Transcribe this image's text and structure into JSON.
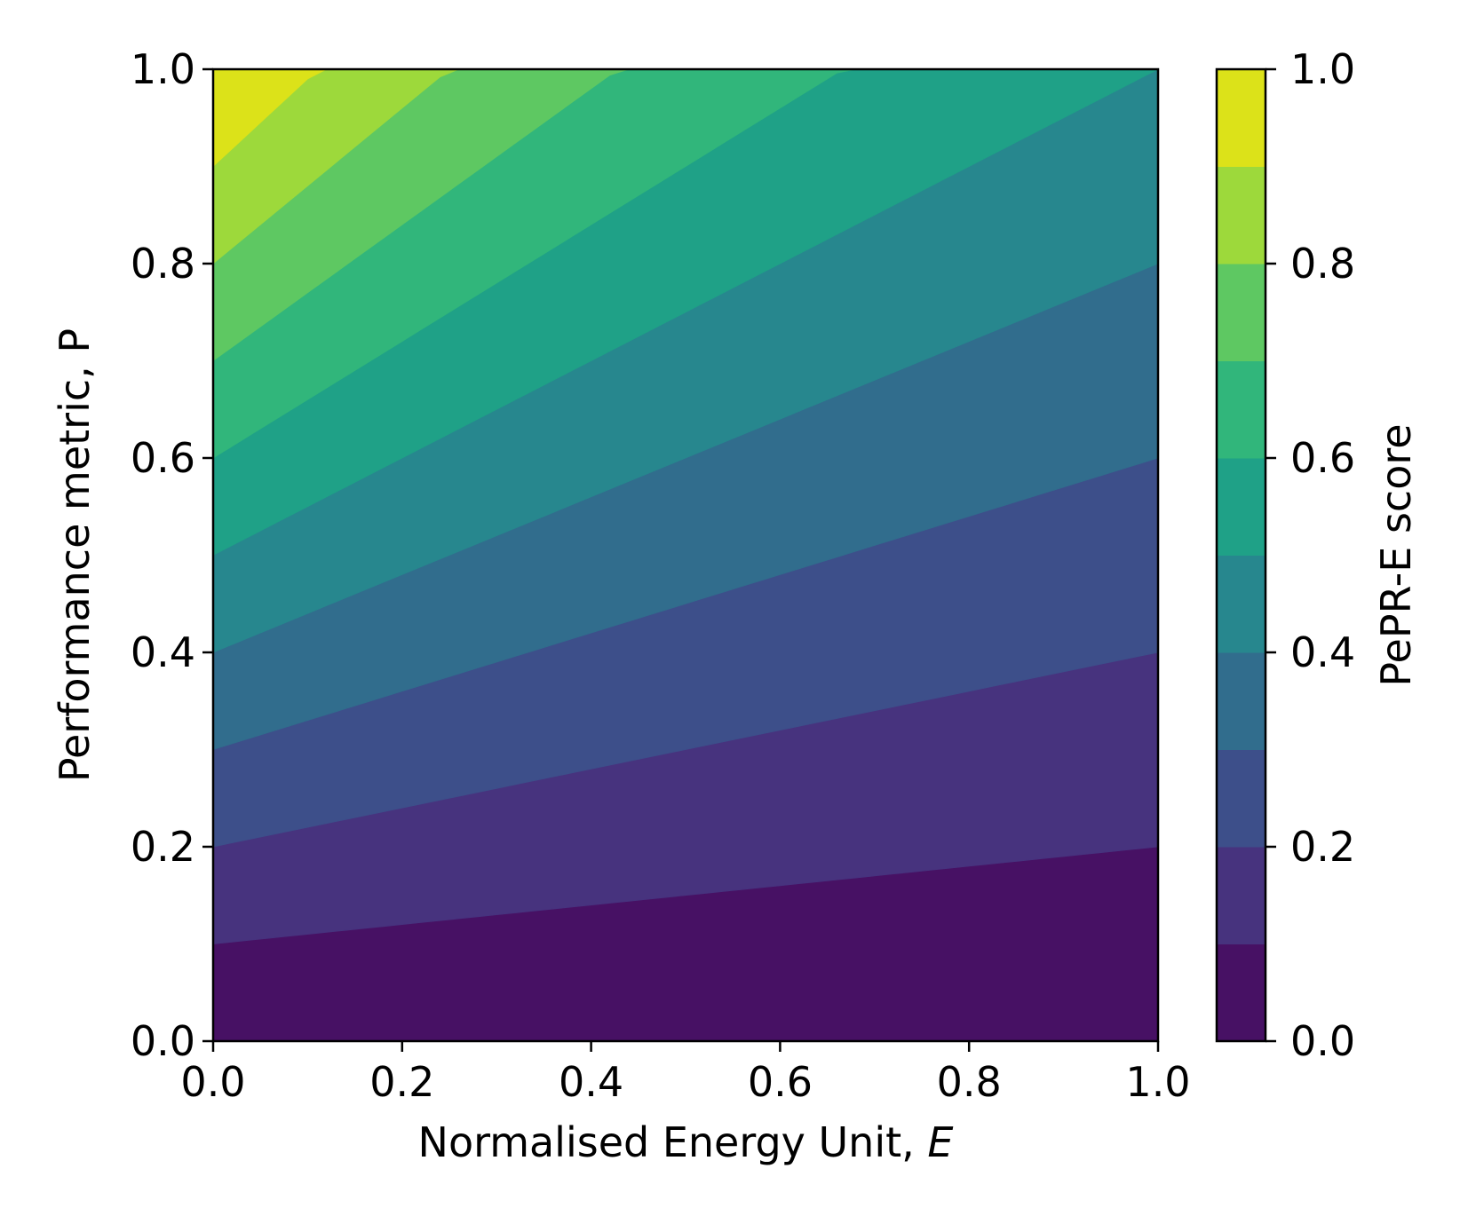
{
  "chart_data": {
    "type": "contour",
    "xlabel": "Normalised Energy Unit, ",
    "xlabel_var": "E",
    "ylabel": "Performance metric, P",
    "colorbar_label": "PePR-E score",
    "xlim": [
      0.0,
      1.0
    ],
    "ylim": [
      0.0,
      1.0
    ],
    "xticks": [
      "0.0",
      "0.2",
      "0.4",
      "0.6",
      "0.8",
      "1.0"
    ],
    "yticks": [
      "0.0",
      "0.2",
      "0.4",
      "0.6",
      "0.8",
      "1.0"
    ],
    "colorbar_ticks": [
      "0.0",
      "0.2",
      "0.4",
      "0.6",
      "0.8",
      "1.0"
    ],
    "function": "P / (1 + E)",
    "levels": [
      0.0,
      0.1,
      0.2,
      0.3,
      0.4,
      0.5,
      0.6,
      0.7,
      0.8,
      0.9,
      1.0
    ],
    "level_colors": [
      "#471164",
      "#47337e",
      "#3d4f8a",
      "#316d8d",
      "#27878e",
      "#1fa187",
      "#31b67b",
      "#5ec862",
      "#9dd93b",
      "#dce219"
    ],
    "colormap": "viridis",
    "grid": false
  }
}
